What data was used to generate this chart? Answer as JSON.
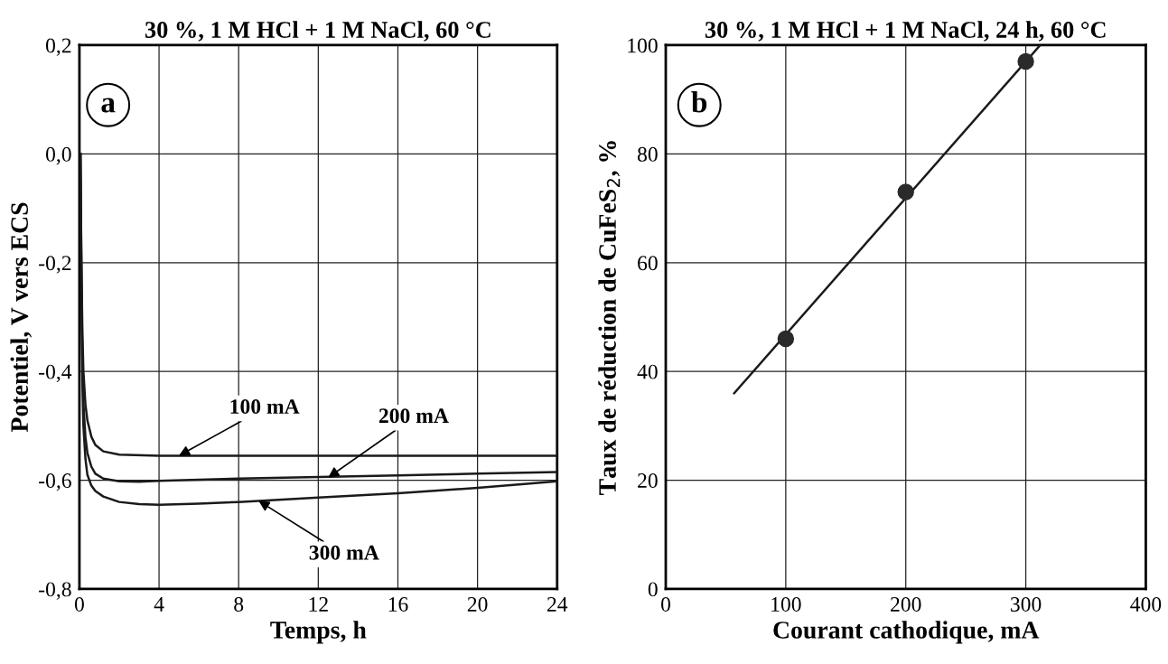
{
  "chart_data": [
    {
      "type": "line",
      "title": "30 %, 1 M HCl + 1 M NaCl, 60 °C",
      "xlabel": "Temps, h",
      "ylabel": "Potentiel, V vers ECS",
      "xlim": [
        0,
        24
      ],
      "xticks": [
        0,
        4,
        8,
        12,
        16,
        20,
        24
      ],
      "ylim": [
        -0.8,
        0.2
      ],
      "yticks": [
        {
          "value": -0.8,
          "label": "-0,8"
        },
        {
          "value": -0.6,
          "label": "-0,6"
        },
        {
          "value": -0.4,
          "label": "-0,4"
        },
        {
          "value": -0.2,
          "label": "-0,2"
        },
        {
          "value": 0.0,
          "label": "0,0"
        },
        {
          "value": 0.2,
          "label": "0,2"
        }
      ],
      "grid": true,
      "legend": false,
      "marker": "none",
      "line_style": "solid",
      "series": [
        {
          "color": "#1a1a1a",
          "x": [
            0.05,
            0.1,
            0.15,
            0.2,
            0.3,
            0.4,
            0.6,
            0.8,
            1.2,
            2,
            4,
            8,
            12,
            16,
            20,
            24
          ],
          "values": [
            0.0,
            -0.2,
            -0.33,
            -0.4,
            -0.46,
            -0.49,
            -0.52,
            -0.535,
            -0.547,
            -0.553,
            -0.555,
            -0.555,
            -0.555,
            -0.555,
            -0.555,
            -0.555
          ]
        },
        {
          "color": "#1a1a1a",
          "x": [
            0.05,
            0.1,
            0.15,
            0.2,
            0.3,
            0.4,
            0.6,
            0.8,
            1.2,
            2,
            3,
            4,
            8,
            12,
            16,
            20,
            24
          ],
          "values": [
            0.0,
            -0.22,
            -0.38,
            -0.46,
            -0.52,
            -0.55,
            -0.575,
            -0.588,
            -0.597,
            -0.602,
            -0.603,
            -0.601,
            -0.597,
            -0.594,
            -0.591,
            -0.588,
            -0.585
          ]
        },
        {
          "color": "#1a1a1a",
          "x": [
            0.05,
            0.1,
            0.15,
            0.2,
            0.3,
            0.4,
            0.6,
            0.8,
            1.2,
            2,
            3,
            4,
            6,
            8,
            12,
            16,
            20,
            24
          ],
          "values": [
            0.0,
            -0.25,
            -0.42,
            -0.5,
            -0.56,
            -0.59,
            -0.61,
            -0.62,
            -0.63,
            -0.64,
            -0.644,
            -0.645,
            -0.643,
            -0.64,
            -0.632,
            -0.624,
            -0.614,
            -0.602
          ]
        }
      ],
      "annotations": [
        "a",
        {
          "text": "100 mA",
          "x": 5,
          "y": -0.555
        },
        {
          "text": "200 mA",
          "x": 12.5,
          "y": -0.595
        },
        {
          "text": "300 mA",
          "x": 9,
          "y": -0.638
        }
      ]
    },
    {
      "type": "scatter",
      "title": "30 %, 1 M HCl + 1 M NaCl, 24 h, 60 °C",
      "xlabel": "Courant cathodique, mA",
      "ylabel": "Taux de réduction de CuFeS$_{2}$, %",
      "xlim": [
        0,
        400
      ],
      "xticks": [
        0,
        100,
        200,
        300,
        400
      ],
      "ylim": [
        0,
        100
      ],
      "yticks": [
        0,
        20,
        40,
        60,
        80,
        100
      ],
      "grid": true,
      "legend": false,
      "series": [
        {
          "type": "scatter",
          "color": "#2a2a2a",
          "marker": "circle",
          "x": [
            100,
            200,
            300
          ],
          "values": [
            46,
            73,
            97
          ]
        },
        {
          "type": "line",
          "color": "#1a1a1a",
          "x": [
            57,
            312
          ],
          "values": [
            36,
            100
          ]
        }
      ],
      "annotations": [
        "b"
      ]
    }
  ]
}
